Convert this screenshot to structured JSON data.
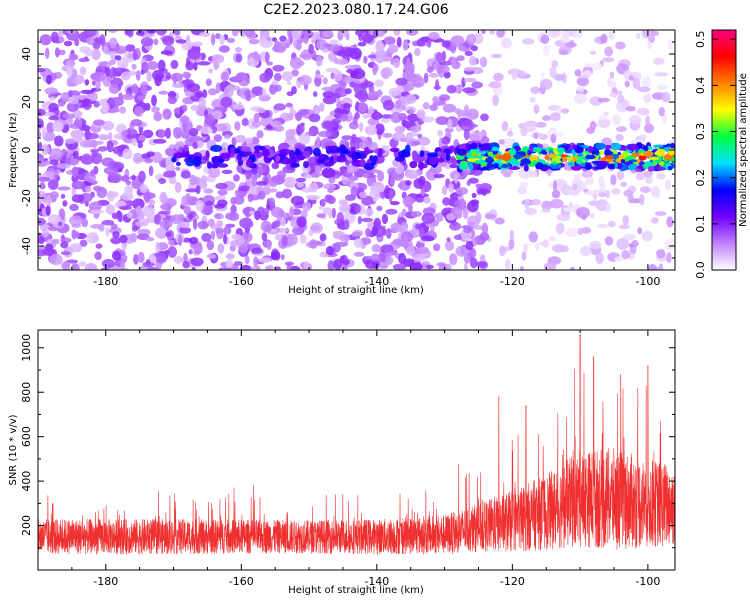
{
  "chart_data": [
    {
      "type": "heatmap",
      "title": "C2E2.2023.080.17.24.G06",
      "xlabel": "Height of straight line (km)",
      "ylabel": "Frequency (Hz)",
      "xlim": [
        -190,
        -96
      ],
      "ylim": [
        -50,
        50
      ],
      "x_ticks": [
        -180,
        -160,
        -140,
        -120,
        -100
      ],
      "y_ticks": [
        -40,
        -20,
        0,
        20,
        40
      ],
      "colorbar": {
        "label": "Normalized spectral amplitude",
        "range": [
          0,
          0.52
        ],
        "ticks": [
          "0.0",
          "0.1",
          "0.2",
          "0.3",
          "0.4",
          "0.5"
        ],
        "colormap": [
          "#ffffff",
          "#c080ff",
          "#7000ff",
          "#0000ff",
          "#00e0ff",
          "#00ff40",
          "#ffff00",
          "#ff8000",
          "#ff0000",
          "#ff0080"
        ]
      },
      "features": {
        "signal_band_frequency_hz": -3,
        "signal_start_km": -128,
        "background_sparse_after_km": -124
      }
    },
    {
      "type": "line",
      "xlabel": "Height of straight line (km)",
      "ylabel": "SNR (10 * v/v)",
      "xlim": [
        -190,
        -96
      ],
      "ylim": [
        0,
        1080
      ],
      "x_ticks": [
        -180,
        -160,
        -140,
        -120,
        -100
      ],
      "y_ticks": [
        200,
        400,
        600,
        800,
        1000
      ],
      "series_color": "#f03030",
      "envelope": {
        "x_km": [
          -190,
          -170,
          -150,
          -140,
          -130,
          -125,
          -120,
          -115,
          -110,
          -105,
          -100,
          -96
        ],
        "mean_snr": [
          150,
          150,
          150,
          150,
          160,
          190,
          220,
          260,
          320,
          320,
          300,
          290
        ],
        "spread_snr": [
          80,
          80,
          75,
          80,
          90,
          110,
          140,
          170,
          220,
          230,
          200,
          190
        ]
      },
      "peaks": [
        {
          "x_km": -110,
          "snr": 1060
        },
        {
          "x_km": -108,
          "snr": 960
        },
        {
          "x_km": -104,
          "snr": 880
        },
        {
          "x_km": -100,
          "snr": 920
        },
        {
          "x_km": -122,
          "snr": 780
        },
        {
          "x_km": -118,
          "snr": 740
        }
      ]
    }
  ]
}
